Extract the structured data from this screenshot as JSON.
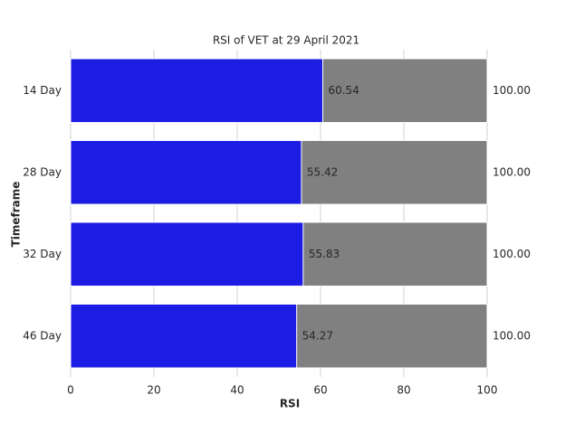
{
  "chart_data": {
    "type": "bar",
    "orientation": "horizontal",
    "title": "RSI of VET at 29 April 2021",
    "x_label": "RSI",
    "y_label": "Timeframe",
    "categories": [
      "14 Day",
      "28 Day",
      "32 Day",
      "46 Day"
    ],
    "series": [
      {
        "color": "#808080",
        "values": [
          100,
          100,
          100,
          100
        ],
        "value_labels": [
          "100.00",
          "100.00",
          "100.00",
          "100.00"
        ]
      },
      {
        "color": "#1c1ce3",
        "values": [
          60.54,
          55.42,
          55.83,
          54.27
        ]
      }
    ],
    "xlim": [
      0,
      100
    ],
    "xticks": [
      0,
      20,
      40,
      60,
      80,
      100
    ],
    "grid": true
  }
}
